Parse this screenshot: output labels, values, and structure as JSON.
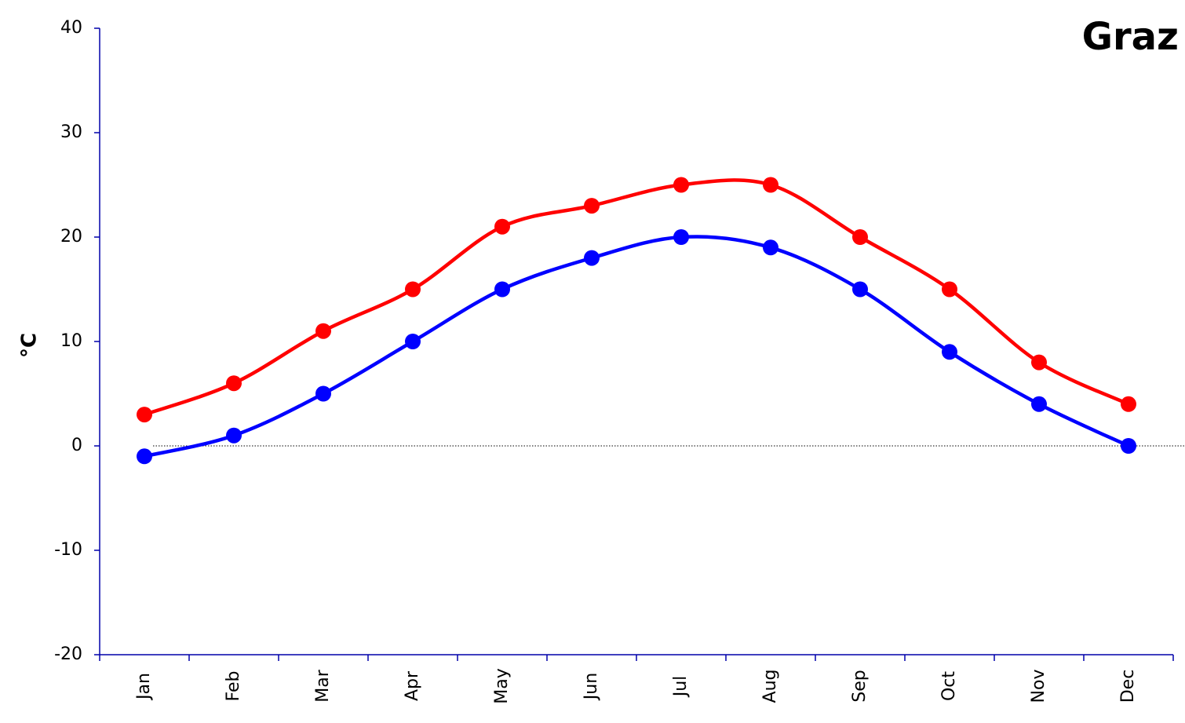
{
  "chart_data": {
    "type": "line",
    "title": "Graz",
    "y_label": "°C",
    "categories": [
      "Jan",
      "Feb",
      "Mar",
      "Apr",
      "May",
      "Jun",
      "Jul",
      "Aug",
      "Sep",
      "Oct",
      "Nov",
      "Dec"
    ],
    "series": [
      {
        "color": "#ff0000",
        "values": [
          3,
          6,
          11,
          15,
          21,
          23,
          25,
          25,
          20,
          15,
          8,
          4
        ]
      },
      {
        "color": "#0000ff",
        "values": [
          -1,
          1,
          5,
          10,
          15,
          18,
          20,
          19,
          15,
          9,
          4,
          0
        ]
      }
    ],
    "ylim": [
      -20,
      40
    ],
    "yticks": [
      -20,
      -10,
      0,
      10,
      20,
      30,
      40
    ],
    "smooth": true,
    "zero_line": true
  }
}
